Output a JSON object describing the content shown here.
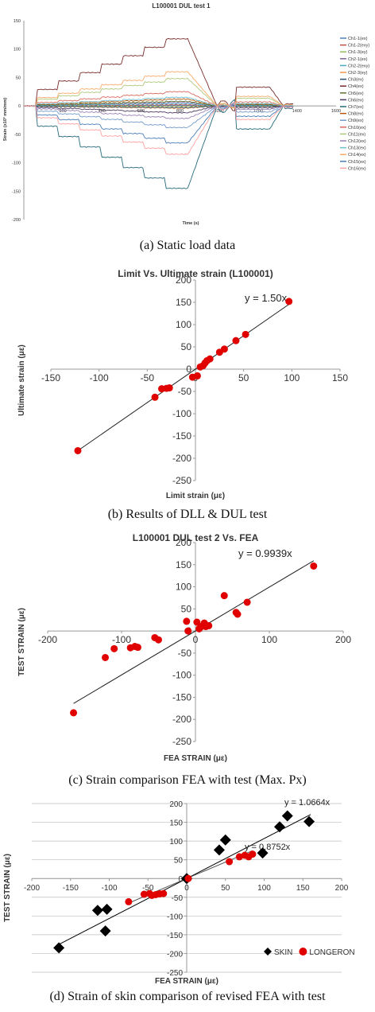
{
  "captions": {
    "a": "(a) Static load data",
    "b": "(b) Results of DLL & DUL test",
    "c": "(c) Strain comparison FEA with test (Max. Px)",
    "d": "(d) Strain of skin comparison of revised FEA with test"
  },
  "chart_data": [
    {
      "type": "line",
      "title": "L100001 DUL test 1",
      "xlabel": "Time (s)",
      "ylabel": "Strain (x10³ mm/mm)",
      "xlim": [
        0,
        1600
      ],
      "ylim": [
        -200,
        150
      ],
      "xticks": [
        200,
        400,
        600,
        800,
        1000,
        1200,
        1400,
        1600
      ],
      "yticks": [
        150,
        100,
        50,
        0,
        -50,
        -100,
        -150,
        -200
      ],
      "grid": false,
      "legend_position": "right",
      "series": [
        {
          "name": "Ch1-1(ex)",
          "color": "#4f81bd",
          "peak": 1
        },
        {
          "name": "Ch1-2(exy)",
          "color": "#c0504d",
          "peak": 2
        },
        {
          "name": "Ch1-3(ey)",
          "color": "#9bbb59",
          "peak": -1
        },
        {
          "name": "Ch2-1(ex)",
          "color": "#8064a2",
          "peak": 6
        },
        {
          "name": "Ch2-2(exy)",
          "color": "#4bacc6",
          "peak": 4
        },
        {
          "name": "Ch2-3(ey)",
          "color": "#f79646",
          "peak": -4
        },
        {
          "name": "Ch3(ex)",
          "color": "#2c4d75",
          "peak": -3
        },
        {
          "name": "Ch4(ex)",
          "color": "#772c2a",
          "peak": 118
        },
        {
          "name": "Ch5(ex)",
          "color": "#5f7530",
          "peak": 8
        },
        {
          "name": "Ch6(ex)",
          "color": "#4d3b62",
          "peak": -12
        },
        {
          "name": "Ch7(ex)",
          "color": "#276a7c",
          "peak": -145
        },
        {
          "name": "Ch8(ex)",
          "color": "#b65708",
          "peak": 12
        },
        {
          "name": "Ch9(ex)",
          "color": "#729aca",
          "peak": -38
        },
        {
          "name": "Ch10(ex)",
          "color": "#d9695c",
          "peak": 25
        },
        {
          "name": "Ch11(ex)",
          "color": "#afc97a",
          "peak": 48
        },
        {
          "name": "Ch12(ex)",
          "color": "#9983b5",
          "peak": -22
        },
        {
          "name": "Ch13(ex)",
          "color": "#6fbdd1",
          "peak": 15
        },
        {
          "name": "Ch14(ex)",
          "color": "#f9ab6b",
          "peak": 60
        },
        {
          "name": "Ch15(ex)",
          "color": "#4a7cb8",
          "peak": -65
        },
        {
          "name": "Ch16(ex)",
          "color": "#ffa0a0",
          "peak": -85
        }
      ]
    },
    {
      "type": "scatter",
      "title": "Limit Vs. Ultimate strain (L100001)",
      "xlabel": "Limit strain (με)",
      "ylabel": "Ultimate strain (με)",
      "xlim": [
        -150,
        150
      ],
      "ylim": [
        -250,
        200
      ],
      "xticks": [
        -150,
        -100,
        -50,
        0,
        50,
        100,
        150
      ],
      "yticks": [
        200,
        150,
        100,
        50,
        0,
        -50,
        -100,
        -150,
        -200,
        -250
      ],
      "grid": false,
      "trendline": {
        "slope": 1.5,
        "x": [
          -122,
          97
        ],
        "label": "y = 1.50x"
      },
      "series": [
        {
          "name": "",
          "color": "#e00000",
          "x": [
            -122,
            -42,
            -35,
            -30,
            -27,
            -3,
            2,
            5,
            8,
            10,
            12,
            15,
            25,
            30,
            42,
            52,
            97
          ],
          "y": [
            -183,
            -63,
            -44,
            -43,
            -42,
            -18,
            -15,
            5,
            8,
            14,
            19,
            23,
            38,
            45,
            64,
            78,
            152
          ]
        }
      ]
    },
    {
      "type": "scatter",
      "title": "L100001 DUL test 2 Vs. FEA",
      "xlabel": "FEA STRAIN (με)",
      "ylabel": "TEST STRAIN (με)",
      "xlim": [
        -200,
        200
      ],
      "ylim": [
        -250,
        200
      ],
      "xticks": [
        -200,
        -100,
        0,
        100,
        200
      ],
      "yticks": [
        200,
        150,
        100,
        50,
        0,
        -50,
        -100,
        -150,
        -200,
        -250
      ],
      "grid": false,
      "trendline": {
        "slope": 0.9939,
        "x": [
          -165,
          160
        ],
        "label": "y =  0.9939x"
      },
      "series": [
        {
          "name": "",
          "color": "#e00000",
          "x": [
            -165,
            -122,
            -110,
            -88,
            -82,
            -78,
            -55,
            -50,
            -12,
            -10,
            2,
            5,
            8,
            12,
            14,
            18,
            39,
            55,
            57,
            70,
            160
          ],
          "y": [
            -185,
            -60,
            -40,
            -38,
            -35,
            -37,
            -15,
            -20,
            22,
            0,
            20,
            5,
            10,
            18,
            10,
            12,
            80,
            42,
            38,
            65,
            147
          ]
        }
      ]
    },
    {
      "type": "scatter",
      "title": "",
      "xlabel": "FEA STRAIN (με)",
      "ylabel": "TEST STRAIN (με)",
      "xlim": [
        -200,
        200
      ],
      "ylim": [
        -250,
        200
      ],
      "xticks": [
        -200,
        -150,
        -100,
        -50,
        0,
        50,
        100,
        150,
        200
      ],
      "yticks": [
        200,
        150,
        100,
        50,
        0,
        -50,
        -100,
        -150,
        -200,
        -250
      ],
      "grid": true,
      "legend_position": "bottom-right",
      "trendlines": [
        {
          "series": "SKIN",
          "slope": 1.0664,
          "x": [
            -165,
            160
          ],
          "label": "y = 1.0664x",
          "color": "#000000"
        },
        {
          "series": "LONGERON",
          "slope": 0.8752,
          "x": [
            -75,
            85
          ],
          "label": "y = 0.8752x",
          "color": "#555555"
        }
      ],
      "series": [
        {
          "name": "SKIN",
          "marker": "diamond",
          "color": "#000000",
          "x": [
            -165,
            -115,
            -103,
            -105,
            0,
            42,
            50,
            98,
            120,
            130,
            158
          ],
          "y": [
            -185,
            -85,
            -82,
            -140,
            0,
            76,
            103,
            68,
            138,
            167,
            152
          ]
        },
        {
          "name": "LONGERON",
          "marker": "circle",
          "color": "#e00000",
          "x": [
            -75,
            -55,
            -48,
            -45,
            -40,
            -35,
            -30,
            2,
            55,
            68,
            75,
            80,
            85
          ],
          "y": [
            -62,
            -42,
            -40,
            -45,
            -43,
            -41,
            -40,
            0,
            45,
            58,
            62,
            58,
            65
          ]
        }
      ]
    }
  ]
}
